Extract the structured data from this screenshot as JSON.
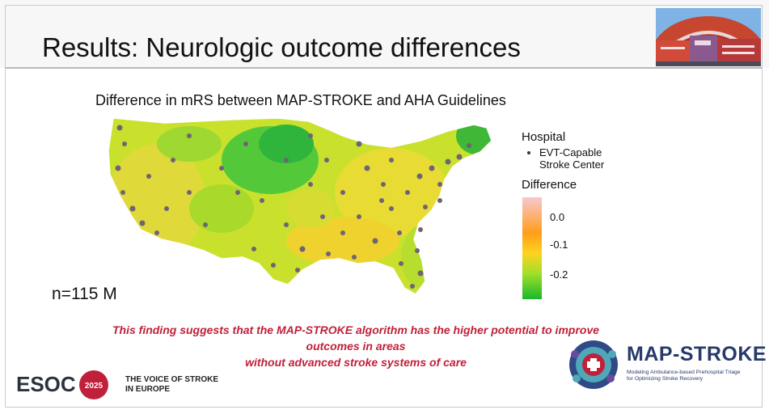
{
  "slide": {
    "title": "Results: Neurologic outcome differences",
    "map_title": "Difference in mRS between MAP-STROKE and AHA Guidelines",
    "sample_size": "n=115 M",
    "finding_line1": "This finding suggests that the MAP-STROKE algorithm has the higher potential to improve outcomes in areas",
    "finding_line2": "without advanced stroke systems of care"
  },
  "legend": {
    "hospital_heading": "Hospital",
    "hospital_item_line1": "EVT-Capable",
    "hospital_item_line2": "Stroke Center",
    "difference_heading": "Difference",
    "ticks": [
      "0.0",
      "-0.1",
      "-0.2"
    ],
    "gradient_colors": [
      "#f7c7cf",
      "#ff9e1a",
      "#ffd21f",
      "#a0df2a",
      "#1ab82b"
    ]
  },
  "footer": {
    "esoc_text": "ESOC",
    "esoc_year": "2025",
    "tagline_line1": "THE VOICE OF STROKE",
    "tagline_line2": "IN EUROPE",
    "brand_name": "MAP-STROKE",
    "brand_sub_line1": "Modeling Ambulance-based Prehospital Triage",
    "brand_sub_line2": "for Optimizing Stroke Recovery"
  },
  "colors": {
    "accent_red": "#c0203a",
    "brand_navy": "#283a6b",
    "hospital_dot": "#6e6474"
  }
}
